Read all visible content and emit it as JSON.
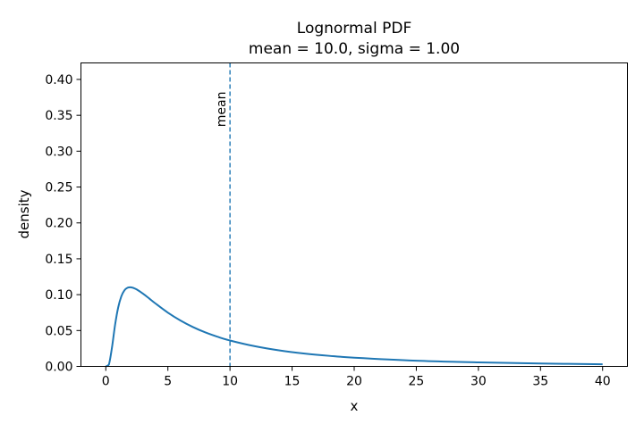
{
  "chart_data": {
    "type": "line",
    "title": "Lognormal PDF",
    "subtitle": "mean = 10.0, sigma = 1.00",
    "xlabel": "x",
    "ylabel": "density",
    "xlim": [
      -2,
      42
    ],
    "ylim": [
      0,
      0.423
    ],
    "xticks": [
      "0",
      "5",
      "10",
      "15",
      "20",
      "25",
      "30",
      "35",
      "40"
    ],
    "yticks": [
      "0.00",
      "0.05",
      "0.10",
      "0.15",
      "0.20",
      "0.25",
      "0.30",
      "0.35",
      "0.40"
    ],
    "grid": false,
    "series": [
      {
        "color": "#1f77b4",
        "x": [
          0,
          0.25,
          0.5,
          0.75,
          1.0,
          1.25,
          1.5,
          1.75,
          2.0,
          2.25,
          2.5,
          3.0,
          3.5,
          4.0,
          5.0,
          6.0,
          7.0,
          8.0,
          9.0,
          10.0,
          12.0,
          14.0,
          16.0,
          18.0,
          20.0,
          25.0,
          30.0,
          35.0,
          40.0
        ],
        "y": [
          0.0,
          0.0026,
          0.0265,
          0.0582,
          0.0823,
          0.0976,
          0.106,
          0.1096,
          0.1103,
          0.1092,
          0.1071,
          0.1013,
          0.0946,
          0.0877,
          0.0749,
          0.0641,
          0.055,
          0.0475,
          0.0413,
          0.0361,
          0.0281,
          0.0222,
          0.0179,
          0.0147,
          0.0122,
          0.008,
          0.0056,
          0.004,
          0.003
        ]
      }
    ],
    "annotation": {
      "x": 10.0,
      "label": "mean",
      "color": "#1f77b4",
      "style": "dashed"
    }
  }
}
